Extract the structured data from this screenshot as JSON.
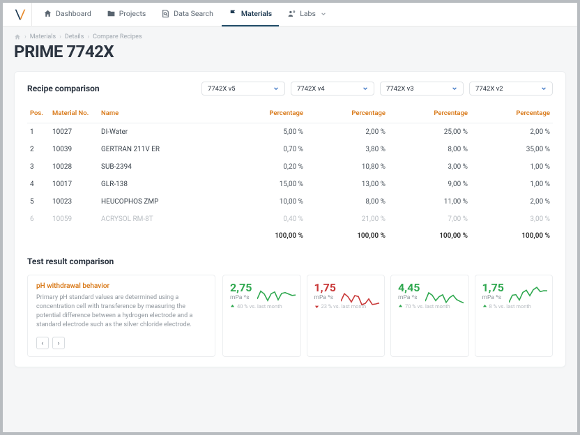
{
  "colors": {
    "accent_orange": "#d97b1c",
    "accent_blue": "#3b74c4",
    "nav_active": "#1e4a66",
    "green": "#2fa84f",
    "red": "#c93838",
    "text_muted": "#8f969d",
    "border": "#eceef0"
  },
  "nav": [
    {
      "icon": "home",
      "label": "Dashboard",
      "active": false
    },
    {
      "icon": "folder",
      "label": "Projects",
      "active": false
    },
    {
      "icon": "search-doc",
      "label": "Data Search",
      "active": false
    },
    {
      "icon": "flag",
      "label": "Materials",
      "active": true
    },
    {
      "icon": "user-cog",
      "label": "Labs",
      "active": false,
      "has_chev": true
    }
  ],
  "breadcrumb": [
    "Materials",
    "Details",
    "Compare Recipes"
  ],
  "page_title": "PRIME 7742X",
  "comparison": {
    "title": "Recipe comparison",
    "selectors": [
      "7742X v5",
      "7742X v4",
      "7742X v3",
      "7742X v2"
    ],
    "columns": [
      "Pos.",
      "Material No.",
      "Name",
      "Percentage",
      "Percentage",
      "Percentage",
      "Percentage"
    ],
    "col_widths": [
      "32px",
      "70px",
      "auto",
      "90px",
      "118px",
      "118px",
      "118px"
    ],
    "rows": [
      {
        "pos": "1",
        "mat": "10027",
        "name": "DI-Water",
        "p": [
          "5,00 %",
          "2,00 %",
          "25,00 %",
          "2,00 %"
        ]
      },
      {
        "pos": "2",
        "mat": "10039",
        "name": "GERTRAN 211V ER",
        "p": [
          "0,70 %",
          "3,80 %",
          "8,00 %",
          "35,00 %"
        ]
      },
      {
        "pos": "3",
        "mat": "10028",
        "name": "SUB-2394",
        "p": [
          "0,20 %",
          "10,80 %",
          "3,00 %",
          "1,00 %"
        ]
      },
      {
        "pos": "4",
        "mat": "10017",
        "name": "GLR-138",
        "p": [
          "15,00 %",
          "13,00 %",
          "9,00 %",
          "1,00 %"
        ]
      },
      {
        "pos": "5",
        "mat": "10023",
        "name": "HEUCOPHOS ZMP",
        "p": [
          "10,00 %",
          "8,00 %",
          "11,00 %",
          "2,00 %"
        ]
      },
      {
        "pos": "6",
        "mat": "10059",
        "name": "ACRYSOL RM-8T",
        "p": [
          "0,40 %",
          "21,00 %",
          "7,00 %",
          "3,00 %"
        ],
        "faded": true
      }
    ],
    "totals": [
      "100,00 %",
      "100,00 %",
      "100,00 %",
      "100,00 %"
    ]
  },
  "test": {
    "title": "Test result comparison",
    "desc_title": "pH withdrawal behavior",
    "desc_text": "Primary pH standard values are determined using a concentration cell with transference by measuring the potential difference between a hydrogen electrode and a standard electrode such as the silver chloride electrode.",
    "metrics": [
      {
        "value": "2,75",
        "unit": "mPa *s",
        "dir": "up",
        "delta": "40 % vs. last month",
        "color": "g",
        "spark": "g"
      },
      {
        "value": "1,75",
        "unit": "mPa *s",
        "dir": "down",
        "delta": "23 % vs. last month",
        "color": "r",
        "spark": "r"
      },
      {
        "value": "4,45",
        "unit": "mPa *s",
        "dir": "up",
        "delta": "70 % vs. last month",
        "color": "g",
        "spark": "g"
      },
      {
        "value": "1,75",
        "unit": "mPa *s",
        "dir": "up",
        "delta": "8 % vs. last month",
        "color": "g",
        "spark": "g"
      }
    ]
  }
}
